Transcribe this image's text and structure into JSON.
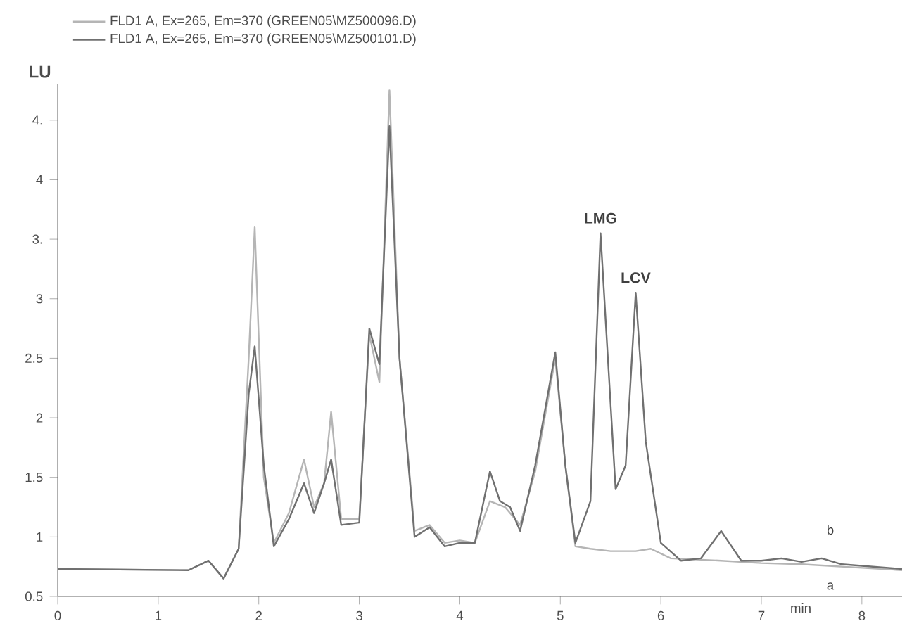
{
  "chart_data": {
    "type": "line",
    "xlabel": "min",
    "ylabel": "LU",
    "xlim": [
      0,
      8.4
    ],
    "ylim": [
      0.5,
      4.8
    ],
    "xticks": [
      0,
      1,
      2,
      3,
      4,
      5,
      6,
      7,
      8
    ],
    "yticks": [
      0.5,
      1,
      1.5,
      2,
      2.5,
      3,
      {
        "value": 3.5,
        "label": "3."
      },
      4,
      {
        "value": 4.5,
        "label": "4."
      }
    ],
    "legend": "top left",
    "grid": false,
    "marker": "none",
    "line_style": "solid",
    "series": [
      {
        "name": "FLD1 A, Ex=265, Em=370 (GREEN05\\MZ500096.D)",
        "color": "#b5b5b5",
        "x": [
          0,
          1.3,
          1.5,
          1.65,
          1.8,
          1.9,
          1.96,
          2.05,
          2.15,
          2.3,
          2.45,
          2.55,
          2.65,
          2.72,
          2.82,
          3.0,
          3.1,
          3.2,
          3.3,
          3.4,
          3.55,
          3.7,
          3.85,
          4.0,
          4.15,
          4.3,
          4.45,
          4.6,
          4.75,
          4.95,
          5.05,
          5.15,
          5.3,
          5.5,
          5.75,
          5.9,
          6.1,
          6.6,
          7.0,
          7.4,
          8.4
        ],
        "values": [
          0.73,
          0.72,
          0.8,
          0.65,
          0.9,
          2.5,
          3.6,
          1.5,
          0.95,
          1.2,
          1.65,
          1.25,
          1.45,
          2.05,
          1.15,
          1.15,
          2.7,
          2.3,
          4.75,
          2.5,
          1.05,
          1.1,
          0.95,
          0.97,
          0.95,
          1.3,
          1.25,
          1.1,
          1.55,
          2.5,
          1.6,
          0.92,
          0.9,
          0.88,
          0.88,
          0.9,
          0.82,
          0.8,
          0.78,
          0.77,
          0.72
        ]
      },
      {
        "name": "FLD1 A, Ex=265, Em=370 (GREEN05\\MZ500101.D)",
        "color": "#707070",
        "x": [
          0,
          1.3,
          1.5,
          1.65,
          1.8,
          1.9,
          1.96,
          2.05,
          2.15,
          2.3,
          2.45,
          2.55,
          2.65,
          2.72,
          2.82,
          3.0,
          3.1,
          3.2,
          3.3,
          3.4,
          3.55,
          3.7,
          3.85,
          4.0,
          4.15,
          4.3,
          4.4,
          4.5,
          4.6,
          4.75,
          4.95,
          5.05,
          5.15,
          5.3,
          5.4,
          5.55,
          5.65,
          5.75,
          5.85,
          6.0,
          6.2,
          6.4,
          6.6,
          6.8,
          7.0,
          7.2,
          7.4,
          7.6,
          7.8,
          8.4
        ],
        "values": [
          0.73,
          0.72,
          0.8,
          0.65,
          0.9,
          2.2,
          2.6,
          1.6,
          0.92,
          1.15,
          1.45,
          1.2,
          1.45,
          1.65,
          1.1,
          1.12,
          2.75,
          2.45,
          4.45,
          2.5,
          1.0,
          1.08,
          0.92,
          0.95,
          0.95,
          1.55,
          1.3,
          1.25,
          1.05,
          1.6,
          2.55,
          1.6,
          0.95,
          1.3,
          3.55,
          1.4,
          1.6,
          3.05,
          1.8,
          0.95,
          0.8,
          0.82,
          1.05,
          0.8,
          0.8,
          0.82,
          0.79,
          0.82,
          0.77,
          0.73
        ]
      }
    ],
    "annotations": [
      {
        "text": "LMG",
        "x": 5.4,
        "y": 3.55
      },
      {
        "text": "LCV",
        "x": 5.75,
        "y": 3.05
      },
      "b",
      "a"
    ]
  }
}
